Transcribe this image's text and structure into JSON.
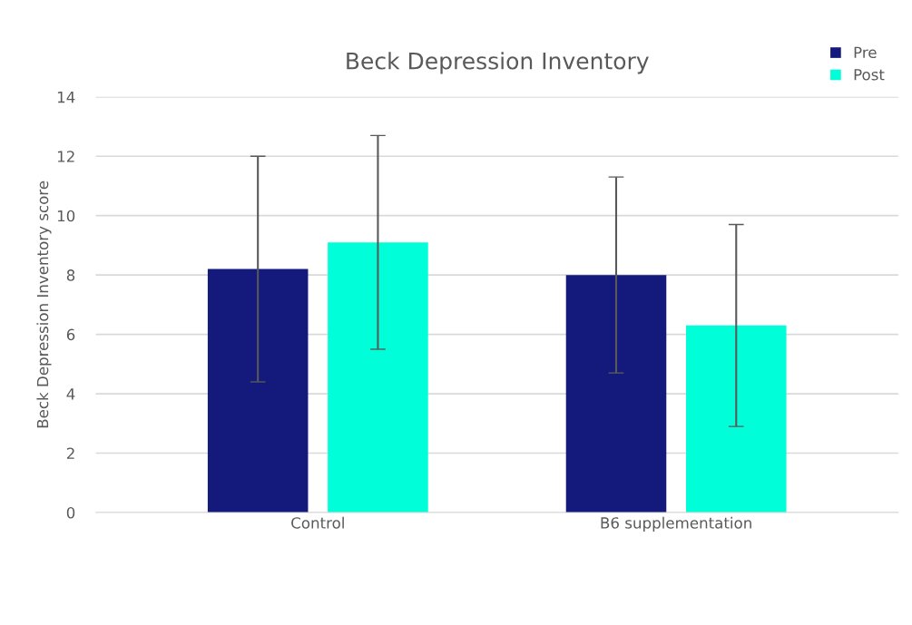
{
  "chart_data": {
    "type": "bar",
    "title": "Beck Depression Inventory",
    "ylabel": "Beck Depression Inventory score",
    "categories": [
      "Control",
      "B6 supplementation"
    ],
    "series": [
      {
        "name": "Pre",
        "color": "#131a7c",
        "values": [
          8.2,
          8.0
        ],
        "errors": [
          3.8,
          3.3
        ]
      },
      {
        "name": "Post",
        "color": "#00ffd8",
        "values": [
          9.1,
          6.3
        ],
        "errors": [
          3.6,
          3.4
        ]
      }
    ],
    "ylim": [
      0,
      14
    ],
    "yticks": [
      0,
      2,
      4,
      6,
      8,
      10,
      12,
      14
    ],
    "grid": "y",
    "legend": "top right"
  }
}
